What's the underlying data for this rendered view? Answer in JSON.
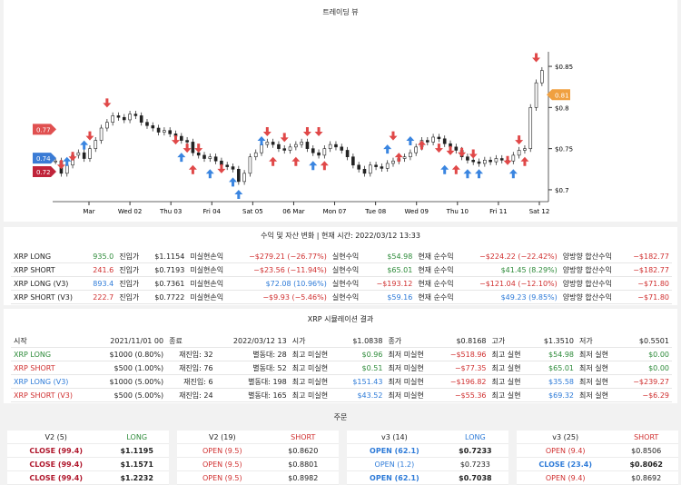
{
  "chart_title": "트레이딩 뷰",
  "chart_data": {
    "type": "candlestick",
    "x_ticks": [
      "Mar",
      "Wed 02",
      "Thu 03",
      "Fri 04",
      "Sat 05",
      "06 Mar",
      "Mon 07",
      "Tue 08",
      "Wed 09",
      "Thu 10",
      "Fri 11",
      "Sat 12"
    ],
    "y_ticks": [
      "$0.85",
      "$0.8",
      "$0.75",
      "$0.7"
    ],
    "ylim": [
      0.69,
      0.86
    ],
    "close_series": [
      0.735,
      0.72,
      0.73,
      0.742,
      0.745,
      0.738,
      0.75,
      0.76,
      0.775,
      0.782,
      0.79,
      0.788,
      0.785,
      0.792,
      0.79,
      0.782,
      0.778,
      0.775,
      0.77,
      0.772,
      0.768,
      0.765,
      0.76,
      0.758,
      0.745,
      0.742,
      0.738,
      0.74,
      0.735,
      0.73,
      0.728,
      0.725,
      0.71,
      0.72,
      0.74,
      0.745,
      0.755,
      0.758,
      0.755,
      0.75,
      0.748,
      0.752,
      0.755,
      0.758,
      0.75,
      0.745,
      0.742,
      0.75,
      0.755,
      0.752,
      0.748,
      0.74,
      0.73,
      0.725,
      0.72,
      0.73,
      0.728,
      0.726,
      0.732,
      0.735,
      0.738,
      0.74,
      0.745,
      0.752,
      0.76,
      0.758,
      0.764,
      0.762,
      0.756,
      0.752,
      0.748,
      0.74,
      0.736,
      0.734,
      0.732,
      0.736,
      0.734,
      0.738,
      0.736,
      0.735,
      0.742,
      0.748,
      0.75,
      0.8,
      0.83,
      0.845
    ],
    "price_labels": [
      {
        "text": "0.77",
        "value": 0.7735,
        "color": "#e05050"
      },
      {
        "text": "0.74",
        "value": 0.7385,
        "color": "#3a7bd5"
      },
      {
        "text": "0.72",
        "value": 0.722,
        "color": "#c0243a"
      },
      {
        "text": "0.81",
        "value": 0.8155,
        "color": "#f0a040"
      }
    ],
    "markers": [
      {
        "i": 1,
        "dir": "down",
        "color": "#e04848",
        "p": 0.725
      },
      {
        "i": 2,
        "dir": "up",
        "color": "#3a85e0",
        "p": 0.74
      },
      {
        "i": 3,
        "dir": "down",
        "color": "#e04848",
        "p": 0.735
      },
      {
        "i": 5,
        "dir": "up",
        "color": "#3a85e0",
        "p": 0.76
      },
      {
        "i": 6,
        "dir": "down",
        "color": "#e04848",
        "p": 0.76
      },
      {
        "i": 9,
        "dir": "down",
        "color": "#e04848",
        "p": 0.8
      },
      {
        "i": 21,
        "dir": "down",
        "color": "#e04848",
        "p": 0.755
      },
      {
        "i": 22,
        "dir": "up",
        "color": "#3a85e0",
        "p": 0.745
      },
      {
        "i": 23,
        "dir": "down",
        "color": "#e04848",
        "p": 0.745
      },
      {
        "i": 24,
        "dir": "up",
        "color": "#e04848",
        "p": 0.73
      },
      {
        "i": 25,
        "dir": "down",
        "color": "#e04848",
        "p": 0.745
      },
      {
        "i": 27,
        "dir": "up",
        "color": "#3a85e0",
        "p": 0.725
      },
      {
        "i": 29,
        "dir": "down",
        "color": "#e04848",
        "p": 0.72
      },
      {
        "i": 31,
        "dir": "up",
        "color": "#3a85e0",
        "p": 0.715
      },
      {
        "i": 32,
        "dir": "up",
        "color": "#3a85e0",
        "p": 0.7
      },
      {
        "i": 36,
        "dir": "up",
        "color": "#3a85e0",
        "p": 0.765
      },
      {
        "i": 37,
        "dir": "down",
        "color": "#e04848",
        "p": 0.765
      },
      {
        "i": 38,
        "dir": "up",
        "color": "#e04848",
        "p": 0.74
      },
      {
        "i": 40,
        "dir": "down",
        "color": "#e04848",
        "p": 0.758
      },
      {
        "i": 42,
        "dir": "up",
        "color": "#e04848",
        "p": 0.74
      },
      {
        "i": 44,
        "dir": "down",
        "color": "#e04848",
        "p": 0.765
      },
      {
        "i": 45,
        "dir": "up",
        "color": "#3a85e0",
        "p": 0.735
      },
      {
        "i": 46,
        "dir": "down",
        "color": "#e04848",
        "p": 0.765
      },
      {
        "i": 47,
        "dir": "up",
        "color": "#e04848",
        "p": 0.735
      },
      {
        "i": 58,
        "dir": "up",
        "color": "#3a85e0",
        "p": 0.755
      },
      {
        "i": 59,
        "dir": "down",
        "color": "#e04848",
        "p": 0.76
      },
      {
        "i": 60,
        "dir": "up",
        "color": "#e04848",
        "p": 0.745
      },
      {
        "i": 62,
        "dir": "up",
        "color": "#3a85e0",
        "p": 0.765
      },
      {
        "i": 64,
        "dir": "up",
        "color": "#e04848",
        "p": 0.76
      },
      {
        "i": 67,
        "dir": "down",
        "color": "#e04848",
        "p": 0.745
      },
      {
        "i": 68,
        "dir": "up",
        "color": "#3a85e0",
        "p": 0.73
      },
      {
        "i": 69,
        "dir": "down",
        "color": "#e04848",
        "p": 0.742
      },
      {
        "i": 70,
        "dir": "up",
        "color": "#e04848",
        "p": 0.73
      },
      {
        "i": 71,
        "dir": "down",
        "color": "#e04848",
        "p": 0.74
      },
      {
        "i": 72,
        "dir": "up",
        "color": "#3a85e0",
        "p": 0.725
      },
      {
        "i": 73,
        "dir": "down",
        "color": "#e04848",
        "p": 0.738
      },
      {
        "i": 74,
        "dir": "up",
        "color": "#3a85e0",
        "p": 0.725
      },
      {
        "i": 79,
        "dir": "down",
        "color": "#e04848",
        "p": 0.73
      },
      {
        "i": 80,
        "dir": "up",
        "color": "#3a85e0",
        "p": 0.725
      },
      {
        "i": 81,
        "dir": "down",
        "color": "#e04848",
        "p": 0.755
      },
      {
        "i": 82,
        "dir": "up",
        "color": "#e04848",
        "p": 0.74
      },
      {
        "i": 84,
        "dir": "down",
        "color": "#e04848",
        "p": 0.855
      }
    ]
  },
  "pnl": {
    "title": "수익 및 자산 변화 | 현재 시간: 2022/03/12 13:33",
    "rows": [
      {
        "name": "XRP LONG",
        "qty": "935.0",
        "qty_color": "green",
        "entry_label": "진입가",
        "entry": "$1.1154",
        "unreal_label": "미실현손익",
        "unreal": "−$279.21 (−26.77%)",
        "unreal_color": "red",
        "real_label": "실현수익",
        "real": "$54.98",
        "real_color": "green",
        "net_label": "현재 순수익",
        "net": "−$224.22 (−22.42%)",
        "net_color": "red",
        "hedge_label": "양방향 합산수익",
        "hedge": "−$182.77",
        "hedge_color": "red"
      },
      {
        "name": "XRP SHORT",
        "qty": "241.6",
        "qty_color": "red",
        "entry_label": "진입가",
        "entry": "$0.7193",
        "unreal_label": "미실현손익",
        "unreal": "−$23.56 (−11.94%)",
        "unreal_color": "red",
        "real_label": "실현수익",
        "real": "$65.01",
        "real_color": "green",
        "net_label": "현재 순수익",
        "net": "$41.45 (8.29%)",
        "net_color": "green",
        "hedge_label": "양방향 합산수익",
        "hedge": "−$182.77",
        "hedge_color": "red"
      },
      {
        "name": "XRP LONG (V3)",
        "qty": "893.4",
        "qty_color": "blue",
        "entry_label": "진입가",
        "entry": "$0.7361",
        "unreal_label": "미실현손익",
        "unreal": "$72.08 (10.96%)",
        "unreal_color": "blue",
        "real_label": "실현수익",
        "real": "−$193.12",
        "real_color": "red",
        "net_label": "현재 순수익",
        "net": "−$121.04 (−12.10%)",
        "net_color": "red",
        "hedge_label": "양방향 합산수익",
        "hedge": "−$71.80",
        "hedge_color": "red"
      },
      {
        "name": "XRP SHORT (V3)",
        "qty": "222.7",
        "qty_color": "red",
        "entry_label": "진입가",
        "entry": "$0.7722",
        "unreal_label": "미실현손익",
        "unreal": "−$9.93 (−5.46%)",
        "unreal_color": "red",
        "real_label": "실현수익",
        "real": "$59.16",
        "real_color": "blue",
        "net_label": "현재 순수익",
        "net": "$49.23 (9.85%)",
        "net_color": "blue",
        "hedge_label": "양방향 합산수익",
        "hedge": "−$71.80",
        "hedge_color": "red"
      }
    ]
  },
  "sim": {
    "title": "XRP 시뮬레이션 결과",
    "header": {
      "start_label": "시작",
      "start": "2021/11/01 00",
      "end_label": "종료",
      "end": "2022/03/12 13",
      "open_label": "시가",
      "open": "$1.0838",
      "close_label": "종가",
      "close": "$0.8168",
      "high_label": "고가",
      "high": "$1.3510",
      "low_label": "저가",
      "low": "$0.5501"
    },
    "rows": [
      {
        "name": "XRP LONG",
        "name_color": "green",
        "alloc": "$1000 (0.80%)",
        "reentry": "재진입: 32",
        "split": "별동대: 28",
        "mh_label": "최고 미실현",
        "mh": "$0.96",
        "mh_color": "green",
        "ml_label": "최저 미실현",
        "ml": "−$518.96",
        "ml_color": "red",
        "rh_label": "최고 실현",
        "rh": "$54.98",
        "rh_color": "green",
        "rl_label": "최저 실현",
        "rl": "$0.00",
        "rl_color": "green"
      },
      {
        "name": "XRP SHORT",
        "name_color": "red",
        "alloc": "$500 (1.00%)",
        "reentry": "재진입: 76",
        "split": "별동대: 52",
        "mh_label": "최고 미실현",
        "mh": "$0.51",
        "mh_color": "green",
        "ml_label": "최저 미실현",
        "ml": "−$77.35",
        "ml_color": "red",
        "rh_label": "최고 실현",
        "rh": "$65.01",
        "rh_color": "green",
        "rl_label": "최저 실현",
        "rl": "$0.00",
        "rl_color": "green"
      },
      {
        "name": "XRP LONG (V3)",
        "name_color": "blue",
        "alloc": "$1000 (5.00%)",
        "reentry": "재진입: 6",
        "split": "별동대: 198",
        "mh_label": "최고 미실현",
        "mh": "$151.43",
        "mh_color": "blue",
        "ml_label": "최저 미실현",
        "ml": "−$196.82",
        "ml_color": "red",
        "rh_label": "최고 실현",
        "rh": "$35.58",
        "rh_color": "blue",
        "rl_label": "최저 실현",
        "rl": "−$239.27",
        "rl_color": "red"
      },
      {
        "name": "XRP SHORT (V3)",
        "name_color": "red",
        "alloc": "$500 (5.00%)",
        "reentry": "재진입: 24",
        "split": "별동대: 165",
        "mh_label": "최고 미실현",
        "mh": "$43.52",
        "mh_color": "blue",
        "ml_label": "최저 미실현",
        "ml": "−$55.36",
        "ml_color": "red",
        "rh_label": "최고 실현",
        "rh": "$69.32",
        "rh_color": "blue",
        "rl_label": "최저 실현",
        "rl": "−$6.29",
        "rl_color": "red"
      }
    ]
  },
  "orders": {
    "title": "주문",
    "columns": [
      {
        "head": "V2 (5)",
        "side": "LONG",
        "side_color": "green",
        "rows": [
          {
            "label": "CLOSE (99.4)",
            "label_class": "crimson",
            "price": "$1.1195",
            "price_class": "bold"
          },
          {
            "label": "CLOSE (99.4)",
            "label_class": "crimson",
            "price": "$1.1571",
            "price_class": "bold"
          },
          {
            "label": "CLOSE (99.4)",
            "label_class": "crimson",
            "price": "$1.2232",
            "price_class": "bold"
          }
        ]
      },
      {
        "head": "V2 (19)",
        "side": "SHORT",
        "side_color": "red",
        "rows": [
          {
            "label": "OPEN (9.5)",
            "label_class": "red",
            "price": "$0.8620",
            "price_class": ""
          },
          {
            "label": "OPEN (9.5)",
            "label_class": "red",
            "price": "$0.8801",
            "price_class": ""
          },
          {
            "label": "OPEN (9.5)",
            "label_class": "red",
            "price": "$0.8982",
            "price_class": ""
          }
        ]
      },
      {
        "head": "v3 (14)",
        "side": "LONG",
        "side_color": "blue",
        "rows": [
          {
            "label": "OPEN (62.1)",
            "label_class": "blue bold",
            "price": "$0.7233",
            "price_class": "bold"
          },
          {
            "label": "OPEN (1.2)",
            "label_class": "blue",
            "price": "$0.7233",
            "price_class": ""
          },
          {
            "label": "OPEN (62.1)",
            "label_class": "blue bold",
            "price": "$0.7038",
            "price_class": "bold"
          }
        ]
      },
      {
        "head": "v3 (25)",
        "side": "SHORT",
        "side_color": "red",
        "rows": [
          {
            "label": "OPEN (9.4)",
            "label_class": "red",
            "price": "$0.8506",
            "price_class": ""
          },
          {
            "label": "CLOSE (23.4)",
            "label_class": "blue bold",
            "price": "$0.8062",
            "price_class": "bold"
          },
          {
            "label": "OPEN (9.4)",
            "label_class": "red",
            "price": "$0.8692",
            "price_class": ""
          }
        ]
      }
    ]
  }
}
